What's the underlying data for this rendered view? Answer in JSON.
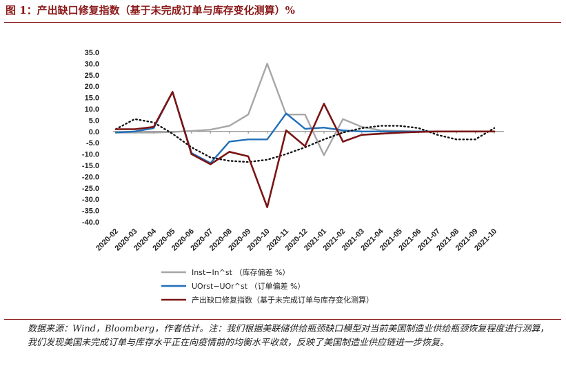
{
  "title": "图 1：产出缺口修复指数（基于未完成订单与库存变化测算）%",
  "source_note": "数据来源：Wind，Bloomberg，作者估计。注：我们根据美联储供给瓶颈缺口模型对当前美国制造业供给瓶颈恢复程度进行测算，我们发现美国未完成订单与库存水平正在向疫情前的均衡水平收敛，反映了美国制造业供应链进一步恢复。",
  "chart_data": {
    "type": "line",
    "x": [
      "2020-02",
      "2020-03",
      "2020-04",
      "2020-05",
      "2020-06",
      "2020-07",
      "2020-08",
      "2020-09",
      "2020-10",
      "2020-11",
      "2020-12",
      "2021-01",
      "2021-02",
      "2021-03",
      "2021-04",
      "2021-05",
      "2021-06",
      "2021-07",
      "2021-08",
      "2021-09",
      "2021-10"
    ],
    "y_ticks": [
      "35.0",
      "30.0",
      "25.0",
      "20.0",
      "15.0",
      "10.0",
      "5.0",
      "0.0",
      "-5.0",
      "-10.0",
      "-15.0",
      "-20.0",
      "-25.0",
      "-30.0",
      "-35.0",
      "-40.0"
    ],
    "ylim": [
      -40,
      35
    ],
    "series": [
      {
        "name": "Inst−In^st （库存偏差 %）",
        "color": "#a6a6a6",
        "style": "solid",
        "values": [
          -0.5,
          -0.5,
          -0.5,
          -0.2,
          0.2,
          0.8,
          2.5,
          7.5,
          30,
          7.5,
          7.5,
          -10.5,
          5.5,
          2.0,
          0.5,
          0.2,
          0,
          0,
          0,
          0,
          0
        ]
      },
      {
        "name": "UOrst−UOr^st （订单偏差 %）",
        "color": "#1f6fb8",
        "style": "solid",
        "values": [
          -0.5,
          0,
          1.5,
          17.5,
          -9.5,
          -14,
          -4.5,
          -3.5,
          -3.5,
          8,
          1.2,
          1.7,
          0.5,
          0,
          0,
          0,
          0,
          0,
          0,
          0,
          0
        ]
      },
      {
        "name": "产出缺口修复指数（基于未完成订单与库存变化测算）",
        "color": "#7b1414",
        "style": "solid",
        "values": [
          1,
          1,
          2,
          17.5,
          -10,
          -14.5,
          -9,
          -11,
          -33.5,
          0.5,
          -6.5,
          12.3,
          -4.5,
          -1.5,
          -1,
          -0.5,
          -0.2,
          0,
          0,
          0,
          0
        ]
      },
      {
        "name": "",
        "color": "#111111",
        "style": "dotted",
        "values": [
          1,
          5.5,
          4,
          -1,
          -7,
          -11.5,
          -13,
          -13.5,
          -12.5,
          -10,
          -7,
          -3.5,
          -0.5,
          1.5,
          2.5,
          2.5,
          1.5,
          -1.5,
          -3.5,
          -3.5,
          1.5
        ]
      }
    ]
  }
}
